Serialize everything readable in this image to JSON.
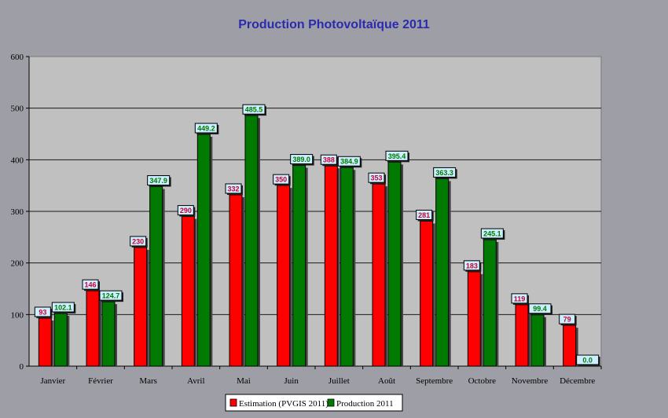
{
  "chart_data": {
    "type": "bar",
    "title": "Production Photovoltaïque 2011",
    "xlabel": "",
    "ylabel": "",
    "categories": [
      "Janvier",
      "Février",
      "Mars",
      "Avril",
      "Mai",
      "Juin",
      "Juillet",
      "Août",
      "Septembre",
      "Octobre",
      "Novembre",
      "Décembre"
    ],
    "ylim": [
      0,
      600
    ],
    "yticks": [
      0,
      100,
      200,
      300,
      400,
      500,
      600
    ],
    "grid": true,
    "legend_position": "bottom",
    "series": [
      {
        "name": "Estimation (PVGIS 2011)",
        "color": "#ff0000",
        "label_color": "#cc0033",
        "values": [
          93,
          146,
          230,
          290,
          332,
          350,
          388,
          353,
          281,
          183,
          119,
          79
        ],
        "labels": [
          "93",
          "146",
          "230",
          "290",
          "332",
          "350",
          "388",
          "353",
          "281",
          "183",
          "119",
          "79"
        ]
      },
      {
        "name": "Production 2011",
        "color": "#007a00",
        "label_color": "#007a00",
        "values": [
          102.1,
          124.7,
          347.9,
          449.2,
          485.5,
          389.0,
          384.9,
          395.4,
          363.3,
          245.1,
          99.4,
          0.0
        ],
        "labels": [
          "102.1",
          "124.7",
          "347.9",
          "449.2",
          "485.5",
          "389.0",
          "384.9",
          "395.4",
          "363.3",
          "245.1",
          "99.4",
          "0.0"
        ]
      }
    ],
    "colors": {
      "background": "#9e9ea6",
      "plot_background": "#c0c0c0",
      "title": "#2b2bb0",
      "label_box": "#cceeff"
    }
  }
}
